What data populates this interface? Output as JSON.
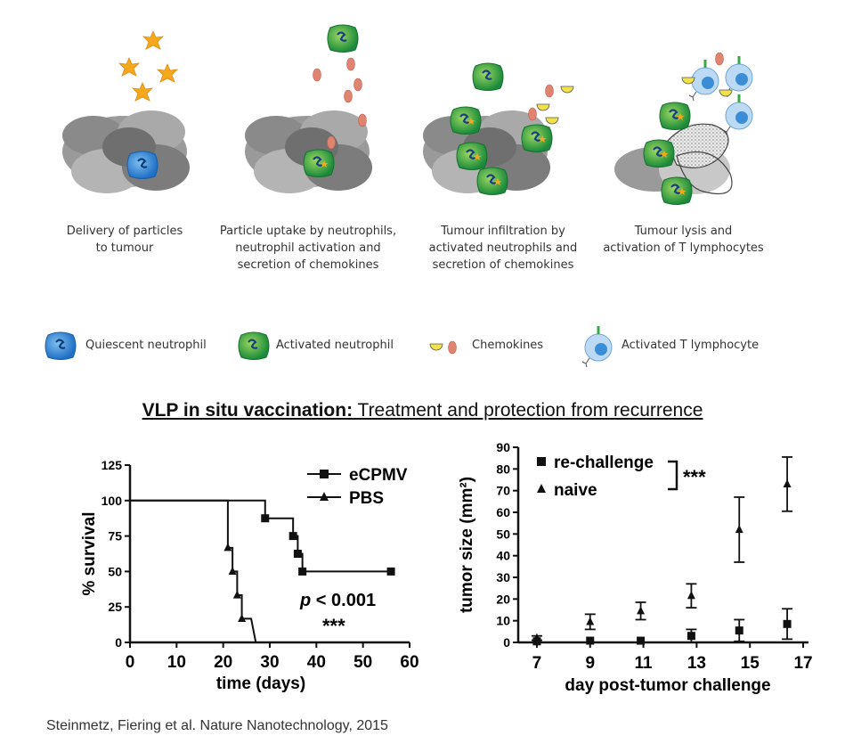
{
  "steps": [
    {
      "caption_lines": [
        "Delivery of particles",
        "to tumour"
      ]
    },
    {
      "caption_lines": [
        "Particle uptake by neutrophils,",
        "neutrophil activation and",
        "secretion of chemokines"
      ]
    },
    {
      "caption_lines": [
        "Tumour infiltration by",
        "activated neutrophils and",
        "secretion of chemokines"
      ]
    },
    {
      "caption_lines": [
        "Tumour lysis and",
        "activation of T lymphocytes"
      ]
    }
  ],
  "legend": {
    "quiescent": "Quiescent neutrophil",
    "activated": "Activated neutrophil",
    "chemokines": "Chemokines",
    "tcell": "Activated T lymphocyte"
  },
  "section_title": {
    "bold": "VLP in situ vaccination:",
    "rest": " Treatment and protection from recurrence"
  },
  "colors": {
    "tumour_grey": "#8c8c8c",
    "neutrophil_blue": "#3b8ed6",
    "neutrophil_green": "#3fae4a",
    "star_orange": "#f4a81d",
    "chemokine_red": "#e08472",
    "tcell_blue": "#9fc8ea"
  },
  "chart_data": [
    {
      "type": "line",
      "xlabel": "time (days)",
      "ylabel": "% survival",
      "xlim": [
        0,
        60
      ],
      "ylim": [
        0,
        125
      ],
      "xticks": [
        "0",
        "10",
        "20",
        "30",
        "40",
        "50",
        "60"
      ],
      "yticks": [
        "0",
        "25",
        "50",
        "75",
        "100",
        "125"
      ],
      "annotation_p": "p < 0.001",
      "annotation_sig": "***",
      "series": [
        {
          "name": "eCPMV",
          "marker": "square",
          "x": [
            0,
            29,
            29,
            35,
            35,
            36,
            36,
            37,
            37,
            56
          ],
          "y": [
            100,
            100,
            87.5,
            87.5,
            75,
            75,
            62.5,
            62.5,
            50,
            50
          ],
          "markers": [
            [
              29,
              87.5
            ],
            [
              35,
              75
            ],
            [
              36,
              62.5
            ],
            [
              37,
              50
            ],
            [
              56,
              50
            ]
          ]
        },
        {
          "name": "PBS",
          "marker": "triangle",
          "x": [
            0,
            21,
            21,
            22,
            22,
            23,
            23,
            24,
            24,
            26,
            26,
            27
          ],
          "y": [
            100,
            100,
            66.7,
            66.7,
            50,
            50,
            33.3,
            33.3,
            16.7,
            16.7,
            16.7,
            0
          ],
          "markers": [
            [
              21,
              66.7
            ],
            [
              22,
              50
            ],
            [
              23,
              33.3
            ],
            [
              24,
              16.7
            ]
          ]
        }
      ]
    },
    {
      "type": "scatter",
      "xlabel": "day post-tumor challenge",
      "ylabel": "tumor size (mm²)",
      "xlim": [
        6.3,
        17.2
      ],
      "ylim": [
        0,
        90
      ],
      "xticks": [
        "7",
        "9",
        "11",
        "13",
        "15",
        "17"
      ],
      "yticks": [
        "0",
        "10",
        "20",
        "30",
        "40",
        "50",
        "60",
        "70",
        "80",
        "90"
      ],
      "annotation_sig": "***",
      "series": [
        {
          "name": "re-challenge",
          "marker": "square",
          "x": [
            7,
            9,
            10.9,
            12.8,
            14.6,
            16.4
          ],
          "y": [
            0.5,
            0.8,
            0.8,
            3,
            5.5,
            8.5
          ],
          "err": [
            0.3,
            0.5,
            0.5,
            3,
            5,
            7
          ]
        },
        {
          "name": "naive",
          "marker": "triangle",
          "x": [
            7,
            9,
            10.9,
            12.8,
            14.6,
            16.4
          ],
          "y": [
            2,
            9.5,
            14.5,
            21.5,
            52,
            73
          ],
          "err": [
            1,
            3.5,
            4,
            5.5,
            15,
            12.5
          ]
        }
      ]
    }
  ],
  "citation": "Steinmetz, Fiering et al. Nature Nanotechnology, 2015"
}
